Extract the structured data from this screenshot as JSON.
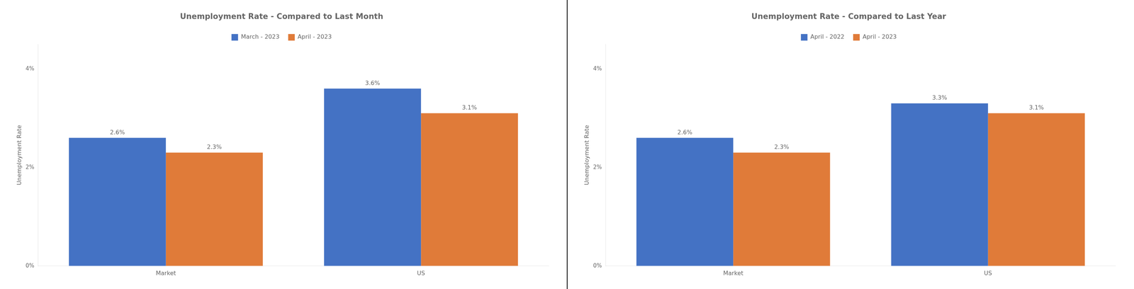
{
  "chart_data": [
    {
      "type": "bar",
      "title": "Unemployment Rate - Compared to Last Month",
      "categories": [
        "Market",
        "US"
      ],
      "series": [
        {
          "name": "March - 2023",
          "color": "#4472C4",
          "values": [
            2.6,
            3.6
          ],
          "value_labels": [
            "2.6%",
            "3.6%"
          ]
        },
        {
          "name": "April - 2023",
          "color": "#E07B39",
          "values": [
            2.3,
            3.1
          ],
          "value_labels": [
            "2.3%",
            "3.1%"
          ]
        }
      ],
      "ylabel": "Unemployment Rate",
      "ylim": [
        0,
        4.5
      ],
      "yticks": [
        {
          "value": 0,
          "label": "0%"
        },
        {
          "value": 2,
          "label": "2%"
        },
        {
          "value": 4,
          "label": "4%"
        }
      ],
      "grid": false,
      "legend": "top",
      "data_labels": true
    },
    {
      "type": "bar",
      "title": "Unemployment Rate - Compared to Last Year",
      "categories": [
        "Market",
        "US"
      ],
      "series": [
        {
          "name": "April - 2022",
          "color": "#4472C4",
          "values": [
            2.6,
            3.3
          ],
          "value_labels": [
            "2.6%",
            "3.3%"
          ]
        },
        {
          "name": "April - 2023",
          "color": "#E07B39",
          "values": [
            2.3,
            3.1
          ],
          "value_labels": [
            "2.3%",
            "3.1%"
          ]
        }
      ],
      "ylabel": "Unemployment Rate",
      "ylim": [
        0,
        4.5
      ],
      "yticks": [
        {
          "value": 0,
          "label": "0%"
        },
        {
          "value": 2,
          "label": "2%"
        },
        {
          "value": 4,
          "label": "4%"
        }
      ],
      "grid": false,
      "legend": "top",
      "data_labels": true
    }
  ]
}
